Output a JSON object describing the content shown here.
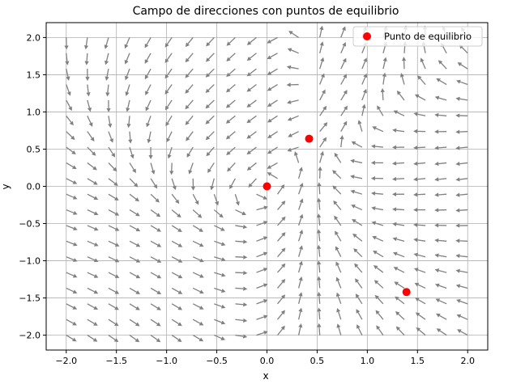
{
  "chart_data": {
    "type": "scatter",
    "title": "Campo de direcciones con puntos de equilibrio",
    "xlabel": "x",
    "ylabel": "y",
    "xlim": [
      -2.2,
      2.2
    ],
    "ylim": [
      -2.2,
      2.2
    ],
    "xticks": [
      -2.0,
      -1.5,
      -1.0,
      -0.5,
      0.0,
      0.5,
      1.0,
      1.5,
      2.0
    ],
    "xtick_labels": [
      "−2.0",
      "−1.5",
      "−1.0",
      "−0.5",
      "0.0",
      "0.5",
      "1.0",
      "1.5",
      "2.0"
    ],
    "yticks": [
      -2.0,
      -1.5,
      -1.0,
      -0.5,
      0.0,
      0.5,
      1.0,
      1.5,
      2.0
    ],
    "ytick_labels": [
      "−2.0",
      "−1.5",
      "−1.0",
      "−0.5",
      "0.0",
      "0.5",
      "1.0",
      "1.5",
      "2.0"
    ],
    "grid": true,
    "legend_position": "top-right",
    "series": [
      {
        "name": "Punto de equilibrio",
        "color": "#ff0000",
        "points": [
          [
            0.0,
            0.0
          ],
          [
            0.42,
            0.64
          ],
          [
            1.39,
            -1.42
          ]
        ]
      }
    ],
    "direction_field": {
      "color": "#808080",
      "x_min": -2.0,
      "x_max": 2.0,
      "y_min": -2.0,
      "y_max": 2.0,
      "count": 20
    }
  }
}
